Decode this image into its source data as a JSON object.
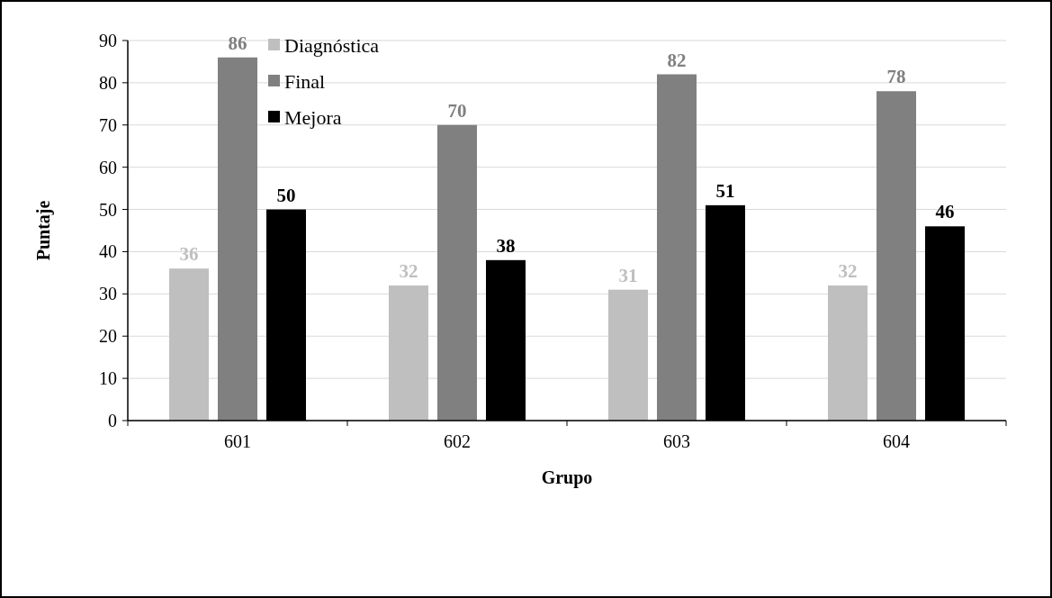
{
  "chart_data": {
    "type": "bar",
    "xlabel": "Grupo",
    "ylabel": "Puntaje",
    "categories": [
      "601",
      "602",
      "603",
      "604"
    ],
    "series": [
      {
        "name": "Diagnóstica",
        "color": "#bfbfbf",
        "values": [
          36,
          32,
          31,
          32
        ]
      },
      {
        "name": "Final",
        "color": "#808080",
        "values": [
          86,
          70,
          82,
          78
        ]
      },
      {
        "name": "Mejora",
        "color": "#000000",
        "values": [
          50,
          38,
          51,
          46
        ]
      }
    ],
    "ylim": [
      0,
      90
    ],
    "yticks": [
      0,
      10,
      20,
      30,
      40,
      50,
      60,
      70,
      80,
      90
    ],
    "grid": "y",
    "legend": "top left",
    "data_labels": true
  }
}
